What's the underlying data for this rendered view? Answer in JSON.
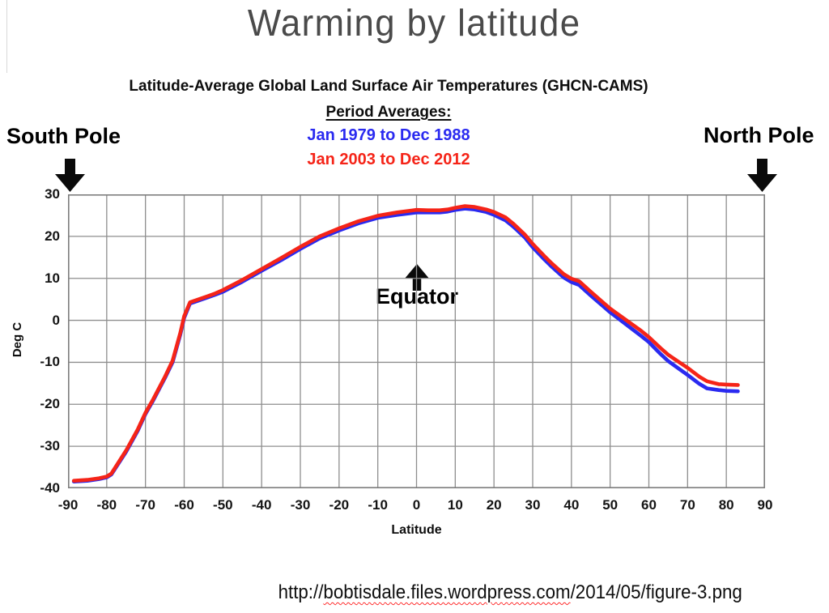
{
  "slide": {
    "title": "Warming by latitude",
    "source_url": {
      "prefix": "http://",
      "domain": "bobtisdale.files.wordpress.com",
      "path": "/2014/05/figure-3.png"
    }
  },
  "annotations": {
    "south_pole": "South Pole",
    "north_pole": "North Pole",
    "equator": "Equator"
  },
  "colors": {
    "title_gray": "#4a4a4a",
    "grid_gray": "#8e8e8e",
    "plot_border_gray": "#7d7d7d",
    "arrow_black": "#0a0a0a",
    "spellcheck_underline_red": "#ff2a2a"
  },
  "chart_data": {
    "type": "line",
    "title": "Latitude-Average Global Land Surface Air Temperatures (GHCN-CAMS)",
    "legend_heading": "Period Averages:",
    "legend_position": "top-center",
    "xlabel": "Latitude",
    "ylabel": "Deg C",
    "xlim": [
      -90,
      90
    ],
    "ylim": [
      -40,
      30
    ],
    "x_ticks": [
      -90,
      -80,
      -70,
      -60,
      -50,
      -40,
      -30,
      -20,
      -10,
      0,
      10,
      20,
      30,
      40,
      50,
      60,
      70,
      80,
      90
    ],
    "y_ticks": [
      30,
      20,
      10,
      0,
      -10,
      -20,
      -30,
      -40
    ],
    "grid": true,
    "x": [
      -88.5,
      -85,
      -82,
      -80,
      -78.8,
      -75,
      -72,
      -70,
      -68,
      -65,
      -63,
      -61,
      -60,
      -58.5,
      -55,
      -52,
      -50,
      -45,
      -40,
      -35,
      -30,
      -25,
      -20,
      -15,
      -10,
      -5,
      0,
      3,
      6,
      8,
      10,
      12.5,
      15,
      18,
      20,
      23,
      25,
      28,
      30,
      33,
      35,
      38,
      40,
      42,
      45,
      48,
      50,
      53,
      55,
      58,
      60,
      63,
      65,
      68,
      70,
      73,
      75,
      78,
      80,
      83
    ],
    "series": [
      {
        "name": "Jan 1979 to Dec 1988",
        "color": "#2a2af0",
        "values": [
          -38.4,
          -38.2,
          -37.8,
          -37.4,
          -36.7,
          -31.3,
          -26.3,
          -22.3,
          -19.1,
          -13.8,
          -10.0,
          -3.4,
          0.6,
          4.0,
          5.1,
          6.1,
          6.8,
          9.2,
          11.8,
          14.3,
          17.0,
          19.5,
          21.4,
          23.1,
          24.4,
          25.1,
          25.7,
          25.7,
          25.7,
          25.9,
          26.3,
          26.6,
          26.4,
          25.8,
          25.1,
          23.8,
          22.3,
          19.7,
          17.4,
          14.5,
          12.7,
          10.2,
          9.1,
          8.4,
          5.9,
          3.5,
          1.9,
          -0.2,
          -1.6,
          -3.7,
          -5.2,
          -8.0,
          -9.7,
          -11.7,
          -13.0,
          -15.1,
          -16.2,
          -16.6,
          -16.8,
          -16.9
        ]
      },
      {
        "name": "Jan 2003 to Dec 2012",
        "color": "#f52418",
        "values": [
          -38.2,
          -38.0,
          -37.6,
          -37.2,
          -36.5,
          -31.0,
          -26.0,
          -22.0,
          -18.8,
          -13.5,
          -9.6,
          -3.0,
          1.0,
          4.3,
          5.4,
          6.4,
          7.2,
          9.6,
          12.2,
          14.8,
          17.5,
          20.0,
          21.9,
          23.6,
          24.9,
          25.7,
          26.3,
          26.2,
          26.2,
          26.4,
          26.8,
          27.2,
          27.0,
          26.4,
          25.8,
          24.5,
          23.0,
          20.4,
          18.2,
          15.3,
          13.5,
          11.0,
          9.9,
          9.3,
          6.8,
          4.4,
          2.8,
          0.8,
          -0.5,
          -2.5,
          -4.0,
          -6.6,
          -8.2,
          -10.1,
          -11.3,
          -13.4,
          -14.5,
          -15.2,
          -15.3,
          -15.4
        ]
      }
    ]
  }
}
